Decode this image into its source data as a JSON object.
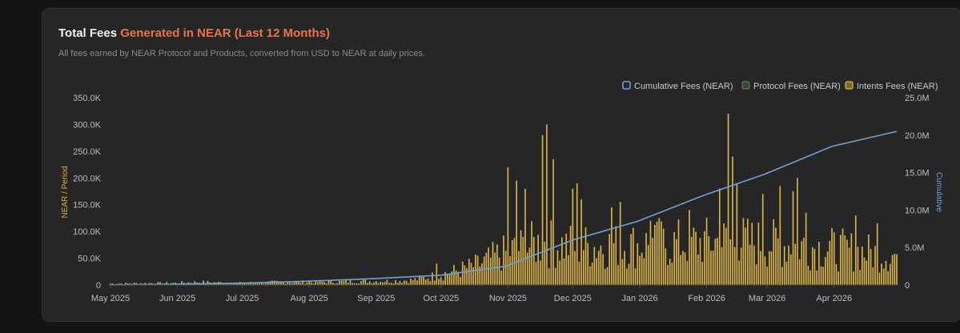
{
  "card": {
    "title_main": "Total Fees",
    "title_highlight": "Generated in NEAR (Last 12 Months)",
    "subtitle": "All fees earned by NEAR Protocol and Products, converted from USD to NEAR at daily prices."
  },
  "colors": {
    "accent": "#e8744c",
    "intents": "#d8b24a",
    "protocol": "#5e7a52",
    "cumulative": "#6fa1d6",
    "background": "#262626"
  },
  "chart_data": {
    "type": "bar",
    "xlabel": "",
    "ylabel": "NEAR / Period",
    "y2label": "Cumulative",
    "ylim": [
      0,
      350000
    ],
    "y2lim": [
      0,
      25000000
    ],
    "yticks": [
      "0",
      "50.0K",
      "100.0K",
      "150.0K",
      "200.0K",
      "250.0K",
      "300.0K",
      "350.0K"
    ],
    "y2ticks": [
      "0",
      "5.0M",
      "10.0M",
      "15.0M",
      "20.0M",
      "25.0M"
    ],
    "x_ticks": [
      "May 2025",
      "Jun 2025",
      "Jul 2025",
      "Aug 2025",
      "Sep 2025",
      "Oct 2025",
      "Nov 2025",
      "Dec 2025",
      "Jan 2026",
      "Feb 2026",
      "Mar 2026",
      "Apr 2026"
    ],
    "legend_position": "top-right",
    "legend": [
      "Cumulative Fees (NEAR)",
      "Protocol Fees (NEAR)",
      "Intents Fees (NEAR)"
    ],
    "grid": false,
    "periods": 365,
    "series": [
      {
        "name": "Intents Fees (NEAR)",
        "type": "bar",
        "axis": "left",
        "anchors": [
          [
            0,
            3000
          ],
          [
            30,
            4000
          ],
          [
            40,
            6000
          ],
          [
            50,
            5000
          ],
          [
            60,
            4000
          ],
          [
            80,
            6000
          ],
          [
            95,
            6000
          ],
          [
            110,
            7000
          ],
          [
            130,
            8000
          ],
          [
            140,
            10000
          ],
          [
            150,
            18000
          ],
          [
            160,
            28000
          ],
          [
            170,
            40000
          ],
          [
            180,
            60000
          ],
          [
            190,
            75000
          ],
          [
            200,
            85000
          ],
          [
            210,
            80000
          ],
          [
            220,
            78000
          ],
          [
            240,
            80000
          ],
          [
            270,
            85000
          ],
          [
            290,
            90000
          ],
          [
            300,
            85000
          ],
          [
            320,
            80000
          ],
          [
            340,
            70000
          ],
          [
            364,
            60000
          ]
        ],
        "spikes": [
          [
            151,
            40000
          ],
          [
            184,
            220000
          ],
          [
            188,
            195000
          ],
          [
            192,
            180000
          ],
          [
            200,
            280000
          ],
          [
            202,
            300000
          ],
          [
            205,
            235000
          ],
          [
            214,
            180000
          ],
          [
            216,
            190000
          ],
          [
            218,
            160000
          ],
          [
            232,
            145000
          ],
          [
            236,
            155000
          ],
          [
            250,
            120000
          ],
          [
            254,
            125000
          ],
          [
            268,
            140000
          ],
          [
            282,
            180000
          ],
          [
            286,
            320000
          ],
          [
            288,
            240000
          ],
          [
            290,
            190000
          ],
          [
            302,
            170000
          ],
          [
            310,
            185000
          ],
          [
            316,
            175000
          ],
          [
            318,
            200000
          ],
          [
            322,
            135000
          ],
          [
            345,
            130000
          ],
          [
            355,
            115000
          ]
        ]
      },
      {
        "name": "Protocol Fees (NEAR)",
        "type": "bar",
        "axis": "left",
        "values_constant": 400
      },
      {
        "name": "Cumulative Fees (NEAR)",
        "type": "line",
        "axis": "right",
        "x": [
          0,
          30,
          61,
          91,
          122,
          153,
          183,
          214,
          244,
          275,
          303,
          334,
          364
        ],
        "values": [
          0,
          100000,
          250000,
          500000,
          850000,
          1300000,
          2500000,
          6000000,
          8500000,
          12000000,
          14800000,
          18500000,
          20500000
        ]
      }
    ]
  }
}
